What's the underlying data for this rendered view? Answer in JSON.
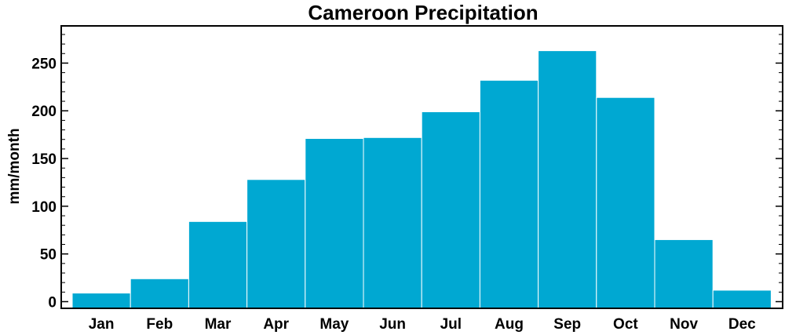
{
  "chart_data": {
    "type": "bar",
    "title": "Cameroon Precipitation",
    "xlabel": "",
    "ylabel": "mm/month",
    "categories": [
      "Jan",
      "Feb",
      "Mar",
      "Apr",
      "May",
      "Jun",
      "Jul",
      "Aug",
      "Sep",
      "Oct",
      "Nov",
      "Dec"
    ],
    "values": [
      9,
      24,
      84,
      128,
      171,
      172,
      199,
      232,
      263,
      214,
      65,
      12
    ],
    "ylim": [
      -7,
      289
    ],
    "yticks": [
      0,
      50,
      100,
      150,
      200,
      250
    ],
    "grid": false,
    "colors": {
      "bar": "#00a8d2",
      "bar_edge": "#ffffff",
      "axis": "#000000"
    }
  }
}
